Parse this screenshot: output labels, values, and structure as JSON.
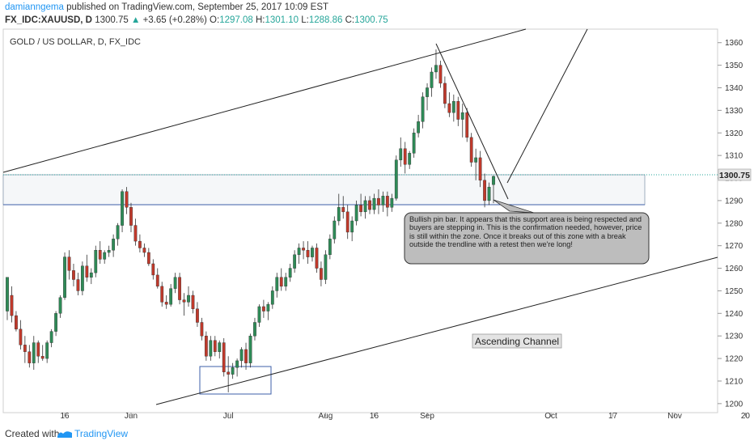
{
  "header": {
    "author": "damianngema",
    "published": "published on TradingView.com, September 25, 2017 10:09 EST",
    "symbol": "FX_IDC:XAUUSD, D",
    "last": "1300.75",
    "arrow": "▲",
    "change": "+3.65 (+0.28%)",
    "o_label": "O:",
    "o_value": "1297.08",
    "h_label": "H:",
    "h_value": "1301.10",
    "l_label": "L:",
    "l_value": "1288.86",
    "c_label": "C:",
    "c_value": "1300.75"
  },
  "footer": {
    "created_with": "Created with",
    "brand": "TradingView"
  },
  "colors": {
    "up": "#2e8b57",
    "down": "#c0392b",
    "last_price_bg": "#e6e6e6"
  },
  "chart_data": {
    "type": "candlestick",
    "title": "GOLD / US DOLLAR, D, FX_IDC",
    "ylim": [
      1196,
      1366
    ],
    "y_ticks": [
      1200,
      1210,
      1220,
      1230,
      1240,
      1250,
      1260,
      1270,
      1280,
      1290,
      1300,
      1310,
      1320,
      1330,
      1340,
      1350,
      1360
    ],
    "x_ticks": [
      "16",
      "Jun",
      "Jul",
      "Aug",
      "16",
      "Sep",
      "Oct",
      "17",
      "Nov",
      "20"
    ],
    "last_price_label": "1300.75",
    "candles": [
      {
        "o": 1241.0,
        "h": 1255.0,
        "l": 1237.0,
        "c": 1256.0
      },
      {
        "o": 1248.0,
        "h": 1252.0,
        "l": 1236.0,
        "c": 1239.0
      },
      {
        "o": 1239.0,
        "h": 1241.0,
        "l": 1232.0,
        "c": 1233.0
      },
      {
        "o": 1233.0,
        "h": 1237.0,
        "l": 1224.0,
        "c": 1226.0
      },
      {
        "o": 1226.0,
        "h": 1230.0,
        "l": 1218.0,
        "c": 1223.0
      },
      {
        "o": 1223.0,
        "h": 1226.0,
        "l": 1216.0,
        "c": 1218.0
      },
      {
        "o": 1218.0,
        "h": 1230.0,
        "l": 1215.0,
        "c": 1227.0
      },
      {
        "o": 1227.0,
        "h": 1228.0,
        "l": 1218.0,
        "c": 1221.0
      },
      {
        "o": 1221.0,
        "h": 1226.0,
        "l": 1219.0,
        "c": 1220.0
      },
      {
        "o": 1220.0,
        "h": 1228.0,
        "l": 1218.0,
        "c": 1227.0
      },
      {
        "o": 1227.0,
        "h": 1233.0,
        "l": 1225.0,
        "c": 1232.0
      },
      {
        "o": 1232.0,
        "h": 1241.0,
        "l": 1230.0,
        "c": 1240.0
      },
      {
        "o": 1240.0,
        "h": 1248.0,
        "l": 1238.0,
        "c": 1247.0
      },
      {
        "o": 1247.0,
        "h": 1267.0,
        "l": 1246.0,
        "c": 1265.0
      },
      {
        "o": 1265.0,
        "h": 1268.0,
        "l": 1255.0,
        "c": 1259.0
      },
      {
        "o": 1259.0,
        "h": 1262.0,
        "l": 1252.0,
        "c": 1255.0
      },
      {
        "o": 1255.0,
        "h": 1258.0,
        "l": 1248.0,
        "c": 1250.0
      },
      {
        "o": 1250.0,
        "h": 1263.0,
        "l": 1248.0,
        "c": 1261.0
      },
      {
        "o": 1261.0,
        "h": 1266.0,
        "l": 1254.0,
        "c": 1256.0
      },
      {
        "o": 1256.0,
        "h": 1260.0,
        "l": 1253.0,
        "c": 1258.0
      },
      {
        "o": 1258.0,
        "h": 1270.0,
        "l": 1256.0,
        "c": 1268.0
      },
      {
        "o": 1268.0,
        "h": 1272.0,
        "l": 1262.0,
        "c": 1264.0
      },
      {
        "o": 1264.0,
        "h": 1268.0,
        "l": 1262.0,
        "c": 1267.0
      },
      {
        "o": 1267.0,
        "h": 1270.0,
        "l": 1265.0,
        "c": 1268.0
      },
      {
        "o": 1268.0,
        "h": 1275.0,
        "l": 1265.0,
        "c": 1273.0
      },
      {
        "o": 1273.0,
        "h": 1280.0,
        "l": 1270.0,
        "c": 1279.0
      },
      {
        "o": 1279.0,
        "h": 1295.0,
        "l": 1276.0,
        "c": 1294.0
      },
      {
        "o": 1294.0,
        "h": 1296.0,
        "l": 1284.0,
        "c": 1287.0
      },
      {
        "o": 1287.0,
        "h": 1289.0,
        "l": 1276.0,
        "c": 1279.0
      },
      {
        "o": 1279.0,
        "h": 1282.0,
        "l": 1270.0,
        "c": 1272.0
      },
      {
        "o": 1272.0,
        "h": 1275.0,
        "l": 1267.0,
        "c": 1269.0
      },
      {
        "o": 1269.0,
        "h": 1271.0,
        "l": 1265.0,
        "c": 1267.0
      },
      {
        "o": 1267.0,
        "h": 1269.0,
        "l": 1261.0,
        "c": 1262.0
      },
      {
        "o": 1262.0,
        "h": 1264.0,
        "l": 1255.0,
        "c": 1257.0
      },
      {
        "o": 1257.0,
        "h": 1260.0,
        "l": 1251.0,
        "c": 1252.0
      },
      {
        "o": 1252.0,
        "h": 1254.0,
        "l": 1243.0,
        "c": 1245.0
      },
      {
        "o": 1245.0,
        "h": 1248.0,
        "l": 1242.0,
        "c": 1244.0
      },
      {
        "o": 1244.0,
        "h": 1253.0,
        "l": 1243.0,
        "c": 1251.0
      },
      {
        "o": 1251.0,
        "h": 1258.0,
        "l": 1249.0,
        "c": 1256.0
      },
      {
        "o": 1256.0,
        "h": 1258.0,
        "l": 1244.0,
        "c": 1246.0
      },
      {
        "o": 1246.0,
        "h": 1249.0,
        "l": 1239.0,
        "c": 1245.0
      },
      {
        "o": 1245.0,
        "h": 1252.0,
        "l": 1243.0,
        "c": 1248.0
      },
      {
        "o": 1248.0,
        "h": 1250.0,
        "l": 1240.0,
        "c": 1242.0
      },
      {
        "o": 1242.0,
        "h": 1245.0,
        "l": 1234.0,
        "c": 1236.0
      },
      {
        "o": 1236.0,
        "h": 1238.0,
        "l": 1228.0,
        "c": 1230.0
      },
      {
        "o": 1230.0,
        "h": 1232.0,
        "l": 1219.0,
        "c": 1221.0
      },
      {
        "o": 1221.0,
        "h": 1230.0,
        "l": 1219.0,
        "c": 1228.0
      },
      {
        "o": 1228.0,
        "h": 1230.0,
        "l": 1221.0,
        "c": 1223.0
      },
      {
        "o": 1223.0,
        "h": 1228.0,
        "l": 1220.0,
        "c": 1227.0
      },
      {
        "o": 1227.0,
        "h": 1229.0,
        "l": 1212.0,
        "c": 1214.0
      },
      {
        "o": 1214.0,
        "h": 1221.0,
        "l": 1205.0,
        "c": 1213.0
      },
      {
        "o": 1213.0,
        "h": 1218.0,
        "l": 1211.0,
        "c": 1216.0
      },
      {
        "o": 1216.0,
        "h": 1220.0,
        "l": 1212.0,
        "c": 1219.0
      },
      {
        "o": 1219.0,
        "h": 1225.0,
        "l": 1216.0,
        "c": 1224.0
      },
      {
        "o": 1224.0,
        "h": 1227.0,
        "l": 1215.0,
        "c": 1218.0
      },
      {
        "o": 1218.0,
        "h": 1231.0,
        "l": 1216.0,
        "c": 1230.0
      },
      {
        "o": 1230.0,
        "h": 1238.0,
        "l": 1228.0,
        "c": 1236.0
      },
      {
        "o": 1236.0,
        "h": 1244.0,
        "l": 1234.0,
        "c": 1243.0
      },
      {
        "o": 1243.0,
        "h": 1246.0,
        "l": 1238.0,
        "c": 1241.0
      },
      {
        "o": 1241.0,
        "h": 1245.0,
        "l": 1237.0,
        "c": 1244.0
      },
      {
        "o": 1244.0,
        "h": 1252.0,
        "l": 1242.0,
        "c": 1250.0
      },
      {
        "o": 1250.0,
        "h": 1258.0,
        "l": 1247.0,
        "c": 1256.0
      },
      {
        "o": 1256.0,
        "h": 1260.0,
        "l": 1250.0,
        "c": 1252.0
      },
      {
        "o": 1252.0,
        "h": 1258.0,
        "l": 1250.0,
        "c": 1256.0
      },
      {
        "o": 1256.0,
        "h": 1262.0,
        "l": 1254.0,
        "c": 1260.0
      },
      {
        "o": 1260.0,
        "h": 1268.0,
        "l": 1258.0,
        "c": 1266.0
      },
      {
        "o": 1266.0,
        "h": 1271.0,
        "l": 1262.0,
        "c": 1269.0
      },
      {
        "o": 1269.0,
        "h": 1272.0,
        "l": 1264.0,
        "c": 1268.0
      },
      {
        "o": 1268.0,
        "h": 1272.0,
        "l": 1262.0,
        "c": 1265.0
      },
      {
        "o": 1265.0,
        "h": 1270.0,
        "l": 1263.0,
        "c": 1269.0
      },
      {
        "o": 1269.0,
        "h": 1271.0,
        "l": 1258.0,
        "c": 1260.0
      },
      {
        "o": 1260.0,
        "h": 1263.0,
        "l": 1252.0,
        "c": 1255.0
      },
      {
        "o": 1255.0,
        "h": 1268.0,
        "l": 1253.0,
        "c": 1266.0
      },
      {
        "o": 1266.0,
        "h": 1275.0,
        "l": 1264.0,
        "c": 1273.0
      },
      {
        "o": 1273.0,
        "h": 1283.0,
        "l": 1271.0,
        "c": 1281.0
      },
      {
        "o": 1281.0,
        "h": 1293.0,
        "l": 1279.0,
        "c": 1287.0
      },
      {
        "o": 1287.0,
        "h": 1292.0,
        "l": 1282.0,
        "c": 1285.0
      },
      {
        "o": 1285.0,
        "h": 1288.0,
        "l": 1273.0,
        "c": 1276.0
      },
      {
        "o": 1276.0,
        "h": 1283.0,
        "l": 1272.0,
        "c": 1281.0
      },
      {
        "o": 1281.0,
        "h": 1290.0,
        "l": 1279.0,
        "c": 1288.0
      },
      {
        "o": 1288.0,
        "h": 1293.0,
        "l": 1283.0,
        "c": 1285.0
      },
      {
        "o": 1285.0,
        "h": 1292.0,
        "l": 1282.0,
        "c": 1290.0
      },
      {
        "o": 1290.0,
        "h": 1292.0,
        "l": 1284.0,
        "c": 1286.0
      },
      {
        "o": 1286.0,
        "h": 1293.0,
        "l": 1284.0,
        "c": 1291.0
      },
      {
        "o": 1291.0,
        "h": 1295.0,
        "l": 1284.0,
        "c": 1288.0
      },
      {
        "o": 1288.0,
        "h": 1294.0,
        "l": 1285.0,
        "c": 1292.0
      },
      {
        "o": 1292.0,
        "h": 1294.0,
        "l": 1283.0,
        "c": 1287.0
      },
      {
        "o": 1287.0,
        "h": 1293.0,
        "l": 1285.0,
        "c": 1291.0
      },
      {
        "o": 1291.0,
        "h": 1310.0,
        "l": 1290.0,
        "c": 1308.0
      },
      {
        "o": 1308.0,
        "h": 1318.0,
        "l": 1305.0,
        "c": 1313.0
      },
      {
        "o": 1313.0,
        "h": 1316.0,
        "l": 1302.0,
        "c": 1306.0
      },
      {
        "o": 1306.0,
        "h": 1312.0,
        "l": 1304.0,
        "c": 1311.0
      },
      {
        "o": 1311.0,
        "h": 1322.0,
        "l": 1309.0,
        "c": 1320.0
      },
      {
        "o": 1320.0,
        "h": 1328.0,
        "l": 1318.0,
        "c": 1325.0
      },
      {
        "o": 1325.0,
        "h": 1338.0,
        "l": 1322.0,
        "c": 1336.0
      },
      {
        "o": 1336.0,
        "h": 1342.0,
        "l": 1330.0,
        "c": 1340.0
      },
      {
        "o": 1340.0,
        "h": 1349.0,
        "l": 1336.0,
        "c": 1347.0
      },
      {
        "o": 1347.0,
        "h": 1357.0,
        "l": 1344.0,
        "c": 1350.0
      },
      {
        "o": 1350.0,
        "h": 1352.0,
        "l": 1340.0,
        "c": 1342.0
      },
      {
        "o": 1342.0,
        "h": 1345.0,
        "l": 1331.0,
        "c": 1333.0
      },
      {
        "o": 1333.0,
        "h": 1338.0,
        "l": 1327.0,
        "c": 1329.0
      },
      {
        "o": 1329.0,
        "h": 1337.0,
        "l": 1325.0,
        "c": 1334.0
      },
      {
        "o": 1334.0,
        "h": 1336.0,
        "l": 1323.0,
        "c": 1326.0
      },
      {
        "o": 1326.0,
        "h": 1333.0,
        "l": 1318.0,
        "c": 1329.0
      },
      {
        "o": 1329.0,
        "h": 1331.0,
        "l": 1316.0,
        "c": 1318.0
      },
      {
        "o": 1318.0,
        "h": 1320.0,
        "l": 1305.0,
        "c": 1307.0
      },
      {
        "o": 1307.0,
        "h": 1313.0,
        "l": 1299.0,
        "c": 1309.0
      },
      {
        "o": 1309.0,
        "h": 1312.0,
        "l": 1296.0,
        "c": 1299.0
      },
      {
        "o": 1299.0,
        "h": 1302.0,
        "l": 1287.0,
        "c": 1290.0
      },
      {
        "o": 1290.0,
        "h": 1298.0,
        "l": 1288.0,
        "c": 1296.0
      },
      {
        "o": 1297.08,
        "h": 1301.1,
        "l": 1288.86,
        "c": 1300.75
      }
    ],
    "annotations": {
      "callout": "Bullish pin bar. It appears that this support area is being respected and buyers are stepping in. This is the confirmation needed, however, price is still within the zone. Once it breaks out of this zone with a break outside the trendline with a retest then we're long!",
      "channel_label": "Ascending Channel"
    }
  }
}
